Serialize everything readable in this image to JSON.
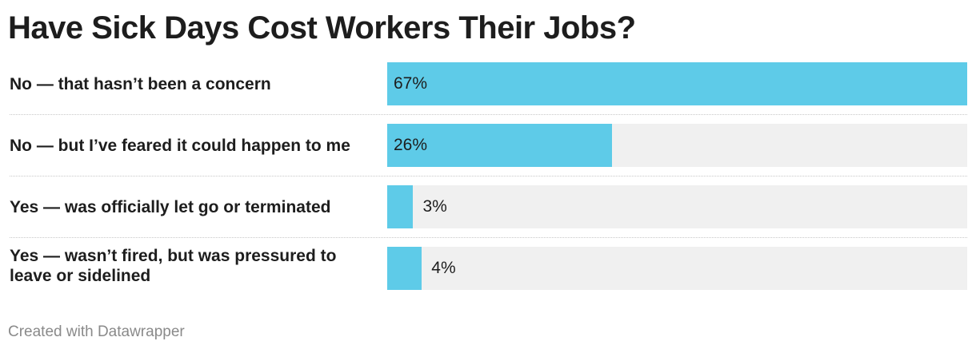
{
  "title": "Have Sick Days Cost Workers Their Jobs?",
  "credit": "Created with Datawrapper",
  "colors": {
    "bar": "#5ecbe8",
    "track": "#f0f0f0"
  },
  "chart_data": {
    "type": "bar",
    "orientation": "horizontal",
    "title": "Have Sick Days Cost Workers Their Jobs?",
    "categories": [
      "No — that hasn’t been a concern",
      "No — but I’ve feared it could happen to me",
      "Yes — was officially let go or terminated",
      "Yes — wasn’t fired, but was pressured to leave or sidelined"
    ],
    "values": [
      67,
      26,
      3,
      4
    ],
    "value_labels": [
      "67%",
      "26%",
      "3%",
      "4%"
    ],
    "xlim": [
      0,
      67
    ],
    "unit": "%",
    "grid": false,
    "legend": "none"
  }
}
